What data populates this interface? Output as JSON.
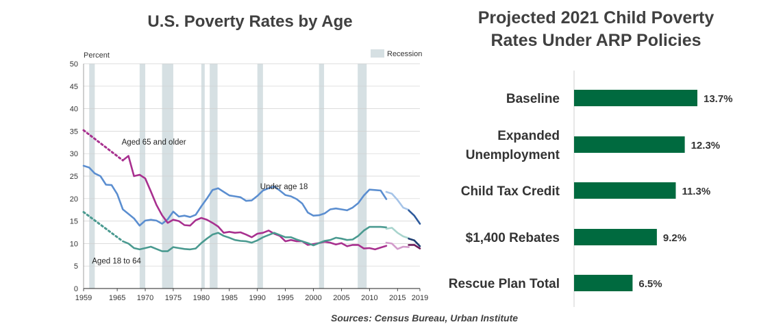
{
  "chart_data": [
    {
      "type": "line",
      "title": "U.S. Poverty Rates by Age",
      "ylabel": "Percent",
      "ylim": [
        0,
        50
      ],
      "yticks": [
        0,
        5,
        10,
        15,
        20,
        25,
        30,
        35,
        40,
        45,
        50
      ],
      "xlim": [
        1959,
        2019
      ],
      "xticks": [
        1959,
        1965,
        1970,
        1975,
        1980,
        1985,
        1990,
        1995,
        2000,
        2005,
        2010,
        2015,
        2019
      ],
      "legend": {
        "recession_label": "Recession",
        "placement": "top-right"
      },
      "recessions": [
        [
          1960,
          1961
        ],
        [
          1969,
          1970
        ],
        [
          1973,
          1975
        ],
        [
          1980,
          1980.5
        ],
        [
          1981.5,
          1982.9
        ],
        [
          1990,
          1991
        ],
        [
          2001,
          2001.9
        ],
        [
          2007.9,
          2009.5
        ]
      ],
      "series": [
        {
          "name": "Under age 18",
          "color": "#5b8ed0",
          "x": [
            1959,
            1960,
            1961,
            1962,
            1963,
            1964,
            1965,
            1966,
            1967,
            1968,
            1969,
            1970,
            1971,
            1972,
            1973,
            1974,
            1975,
            1976,
            1977,
            1978,
            1979,
            1980,
            1981,
            1982,
            1983,
            1984,
            1985,
            1986,
            1987,
            1988,
            1989,
            1990,
            1991,
            1992,
            1993,
            1994,
            1995,
            1996,
            1997,
            1998,
            1999,
            2000,
            2001,
            2002,
            2003,
            2004,
            2005,
            2006,
            2007,
            2008,
            2009,
            2010,
            2011,
            2012,
            2013
          ],
          "y": [
            27.3,
            26.9,
            25.6,
            25.0,
            23.1,
            23.0,
            21.0,
            17.6,
            16.6,
            15.6,
            14.0,
            15.1,
            15.3,
            15.1,
            14.4,
            15.4,
            17.1,
            16.0,
            16.2,
            15.9,
            16.4,
            18.3,
            20.0,
            21.9,
            22.3,
            21.5,
            20.7,
            20.5,
            20.3,
            19.5,
            19.6,
            20.6,
            21.8,
            22.3,
            22.7,
            21.8,
            20.8,
            20.5,
            19.9,
            18.9,
            16.9,
            16.2,
            16.3,
            16.7,
            17.6,
            17.8,
            17.6,
            17.4,
            18.0,
            19.0,
            20.7,
            22.0,
            21.9,
            21.8,
            19.9
          ]
        },
        {
          "name": "Under age 18 (2013-2019)",
          "color": "#a6c4e8",
          "x": [
            2013,
            2014,
            2015,
            2016,
            2017
          ],
          "y": [
            21.5,
            21.1,
            19.7,
            18.0,
            17.5
          ]
        },
        {
          "name": "Under age 18 (2017-2019)",
          "color": "#2e5a9c",
          "x": [
            2017,
            2018,
            2019
          ],
          "y": [
            17.4,
            16.2,
            14.4
          ]
        },
        {
          "name": "Aged 65 and older",
          "color": "#a8308f",
          "x": [
            1966,
            1967,
            1968,
            1969,
            1970,
            1971,
            1972,
            1973,
            1974,
            1975,
            1976,
            1977,
            1978,
            1979,
            1980,
            1981,
            1982,
            1983,
            1984,
            1985,
            1986,
            1987,
            1988,
            1989,
            1990,
            1991,
            1992,
            1993,
            1994,
            1995,
            1996,
            1997,
            1998,
            1999,
            2000,
            2001,
            2002,
            2003,
            2004,
            2005,
            2006,
            2007,
            2008,
            2009,
            2010,
            2011,
            2012,
            2013
          ],
          "y": [
            28.5,
            29.5,
            25.0,
            25.3,
            24.5,
            21.6,
            18.6,
            16.3,
            14.6,
            15.3,
            15.0,
            14.1,
            14.0,
            15.2,
            15.7,
            15.3,
            14.6,
            13.8,
            12.4,
            12.6,
            12.4,
            12.5,
            12.0,
            11.4,
            12.2,
            12.4,
            12.9,
            12.2,
            11.7,
            10.5,
            10.8,
            10.5,
            10.5,
            9.7,
            9.9,
            10.1,
            10.4,
            10.2,
            9.8,
            10.1,
            9.4,
            9.7,
            9.7,
            8.9,
            9.0,
            8.7,
            9.1,
            9.5
          ]
        },
        {
          "name": "Aged 65 and older (2013-2019)",
          "color": "#d39bcb",
          "x": [
            2013,
            2014,
            2015,
            2016,
            2017
          ],
          "y": [
            10.2,
            10.0,
            8.8,
            9.3,
            9.2
          ]
        },
        {
          "name": "Aged 65 and older (2017-2019)",
          "color": "#6c1a5a",
          "x": [
            2017,
            2018,
            2019
          ],
          "y": [
            9.7,
            9.7,
            8.9
          ]
        },
        {
          "name": "Aged 18 to 64",
          "color": "#4a9a90",
          "x": [
            1966,
            1967,
            1968,
            1969,
            1970,
            1971,
            1972,
            1973,
            1974,
            1975,
            1976,
            1977,
            1978,
            1979,
            1980,
            1981,
            1982,
            1983,
            1984,
            1985,
            1986,
            1987,
            1988,
            1989,
            1990,
            1991,
            1992,
            1993,
            1994,
            1995,
            1996,
            1997,
            1998,
            1999,
            2000,
            2001,
            2002,
            2003,
            2004,
            2005,
            2006,
            2007,
            2008,
            2009,
            2010,
            2011,
            2012,
            2013
          ],
          "y": [
            10.5,
            10.0,
            9.0,
            8.7,
            9.0,
            9.3,
            8.8,
            8.3,
            8.3,
            9.2,
            9.0,
            8.8,
            8.7,
            8.9,
            10.1,
            11.1,
            12.0,
            12.4,
            11.7,
            11.3,
            10.8,
            10.6,
            10.5,
            10.2,
            10.7,
            11.4,
            11.9,
            12.4,
            11.9,
            11.4,
            11.4,
            10.9,
            10.5,
            10.1,
            9.6,
            10.1,
            10.6,
            10.8,
            11.3,
            11.1,
            10.8,
            10.9,
            11.7,
            12.9,
            13.7,
            13.7,
            13.7,
            13.6
          ]
        },
        {
          "name": "Aged 18 to 64 (2013-2019)",
          "color": "#a8d4cd",
          "x": [
            2013,
            2014,
            2015,
            2016,
            2017
          ],
          "y": [
            13.3,
            13.5,
            12.4,
            11.6,
            11.2
          ]
        },
        {
          "name": "Aged 18 to 64 (2017-2019)",
          "color": "#1e3e72",
          "x": [
            2017,
            2018,
            2019
          ],
          "y": [
            11.1,
            10.7,
            9.4
          ]
        }
      ],
      "dotted_extensions": [
        {
          "series": "Aged 65 and older",
          "color": "#a8308f",
          "x": [
            1959,
            1966
          ],
          "y": [
            35.2,
            28.5
          ]
        },
        {
          "series": "Aged 18 to 64",
          "color": "#4a9a90",
          "x": [
            1959,
            1966
          ],
          "y": [
            17.0,
            10.5
          ]
        }
      ],
      "annotations": [
        {
          "text": "Aged 65 and older",
          "x": 1965.8,
          "y": 32.0
        },
        {
          "text": "Under age 18",
          "x": 1990.5,
          "y": 22.1
        },
        {
          "text": "Aged 18 to 64",
          "x": 1960.5,
          "y": 5.6
        }
      ]
    },
    {
      "type": "bar",
      "orientation": "horizontal",
      "title": "Projected 2021 Child Poverty Rates Under ARP Policies",
      "categories": [
        "Baseline",
        "Expanded Unemployment",
        "Child Tax Credit",
        "$1,400 Rebates",
        "Rescue Plan Total"
      ],
      "category_lines": [
        [
          "Baseline"
        ],
        [
          "Expanded",
          "Unemployment"
        ],
        [
          "Child Tax Credit"
        ],
        [
          "$1,400 Rebates"
        ],
        [
          "Rescue Plan Total"
        ]
      ],
      "values": [
        13.7,
        12.3,
        11.3,
        9.2,
        6.5
      ],
      "value_labels": [
        "13.7%",
        "12.3%",
        "11.3%",
        "9.2%",
        "6.5%"
      ],
      "bar_color": "#006a3f",
      "xlim": [
        0,
        13.7
      ]
    }
  ],
  "sources": "Sources: Census Bureau, Urban Institute"
}
